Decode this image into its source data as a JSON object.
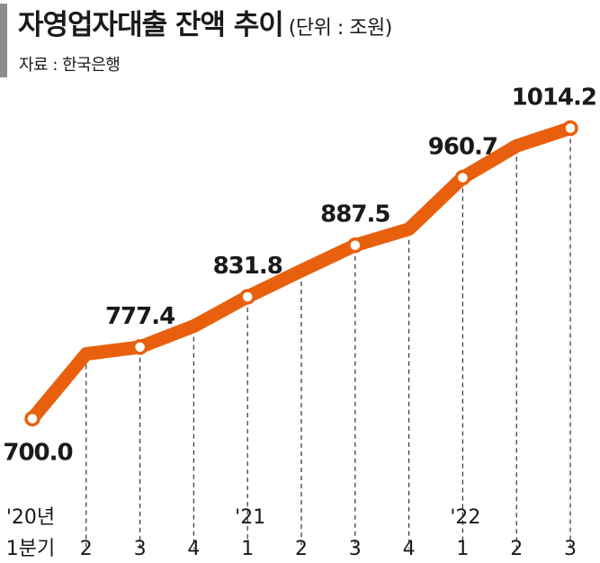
{
  "header": {
    "title": "자영업자대출 잔액 추이",
    "unit": "(단위 : 조원)",
    "source": "자료 : 한국은행"
  },
  "colors": {
    "line": "#e8600e",
    "marker_fill": "#ffffff",
    "grid": "#333333",
    "title_bar": "#8c8c8c"
  },
  "chart_data": {
    "type": "line",
    "title": "자영업자대출 잔액 추이",
    "unit": "(단위 : 조원)",
    "categories": [
      "1분기",
      "2",
      "3",
      "4",
      "1",
      "2",
      "3",
      "4",
      "1",
      "2",
      "3"
    ],
    "year_labels": [
      "'20년",
      "",
      "",
      "",
      "'21",
      "",
      "",
      "",
      "'22",
      "",
      ""
    ],
    "series": [
      {
        "values": [
          700.0,
          770.0,
          777.4,
          800.0,
          831.8,
          860.0,
          887.5,
          905.0,
          960.7,
          995.0,
          1014.2
        ],
        "labels": [
          "700.0",
          "",
          "777.4",
          "",
          "831.8",
          "",
          "887.5",
          "",
          "960.7",
          "",
          "1014.2"
        ],
        "markers": [
          true,
          false,
          true,
          false,
          true,
          false,
          true,
          false,
          true,
          false,
          true
        ]
      }
    ],
    "ylim": [
      680,
      1040
    ],
    "grid": "vertical dashed",
    "legend": "none"
  }
}
